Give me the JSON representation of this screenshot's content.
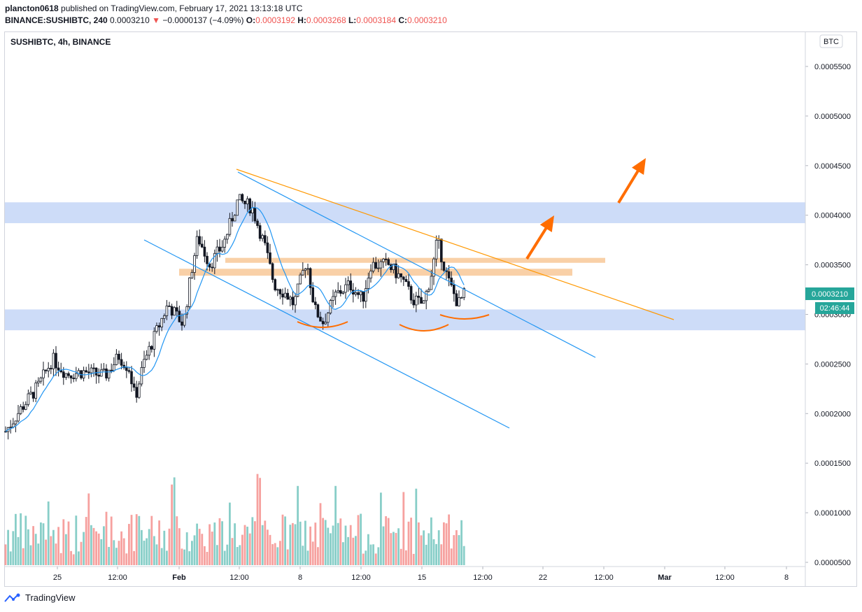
{
  "header": {
    "author": "plancton0618",
    "published": "published on TradingView.com, February 17, 2021 13:13:18 UTC",
    "symbol_line": "BINANCE:SUSHIBTC, 240",
    "last": "0.0003210",
    "change_arrow": "▼",
    "change": "−0.0000137 (−4.09%)",
    "o_label": "O:",
    "o": "0.0003192",
    "h_label": "H:",
    "h": "0.0003268",
    "l_label": "L:",
    "l": "0.0003184",
    "c_label": "C:",
    "c": "0.0003210"
  },
  "legend_title": "SUSHIBTC, 4h, BINANCE",
  "currency_badge": "BTC",
  "price_tag": "0.0003210",
  "countdown_tag": "02:46:44",
  "footer_brand": "TradingView",
  "colors": {
    "up": "#26a69a",
    "down": "#ef5350",
    "candle_body": "#131722",
    "zone_blue": "#a4bff2",
    "zone_orange": "#f7c08a",
    "channel": "#2196f3",
    "trendline": "#ff9800",
    "arrow": "#ff6d00",
    "ma": "#2196f3"
  },
  "chart_data": {
    "type": "candlestick",
    "y_axis": {
      "min": 4.5e-05,
      "max": 0.00058,
      "ticks": [
        "0.0005500",
        "0.0005000",
        "0.0004500",
        "0.0004000",
        "0.0003500",
        "0.0003000",
        "0.0002500",
        "0.0002000",
        "0.0001500",
        "0.0001000",
        "0.0000500"
      ]
    },
    "x_axis": {
      "ticks": [
        "25",
        "12:00",
        "Feb",
        "12:00",
        "8",
        "12:00",
        "15",
        "12:00",
        "22",
        "12:00",
        "Mar",
        "12:00",
        "8"
      ]
    },
    "ohlc_sample": [
      {
        "o": 0.00018,
        "h": 0.000205,
        "l": 0.000176,
        "c": 0.000202
      },
      {
        "o": 0.000202,
        "h": 0.000215,
        "l": 0.000198,
        "c": 0.00021
      },
      {
        "o": 0.00021,
        "h": 0.00023,
        "l": 0.000205,
        "c": 0.000225
      },
      {
        "o": 0.000225,
        "h": 0.000265,
        "l": 0.00022,
        "c": 0.000258
      },
      {
        "o": 0.000258,
        "h": 0.00027,
        "l": 0.000232,
        "c": 0.00024
      },
      {
        "o": 0.00024,
        "h": 0.000262,
        "l": 0.000225,
        "c": 0.000252
      },
      {
        "o": 0.000252,
        "h": 0.000275,
        "l": 0.000205,
        "c": 0.000215
      },
      {
        "o": 0.000215,
        "h": 0.00031,
        "l": 0.00021,
        "c": 0.0003
      },
      {
        "o": 0.0003,
        "h": 0.00041,
        "l": 0.00029,
        "c": 0.000395
      },
      {
        "o": 0.000395,
        "h": 0.000445,
        "l": 0.00036,
        "c": 0.000415
      },
      {
        "o": 0.000415,
        "h": 0.00042,
        "l": 0.00032,
        "c": 0.00033
      },
      {
        "o": 0.00033,
        "h": 0.000365,
        "l": 0.00029,
        "c": 0.0003
      },
      {
        "o": 0.0003,
        "h": 0.000345,
        "l": 0.000295,
        "c": 0.00033
      },
      {
        "o": 0.00033,
        "h": 0.000362,
        "l": 0.000305,
        "c": 0.000345
      },
      {
        "o": 0.000345,
        "h": 0.00035,
        "l": 0.00028,
        "c": 0.000305
      },
      {
        "o": 0.000305,
        "h": 0.000378,
        "l": 0.0003,
        "c": 0.00037
      },
      {
        "o": 0.00037,
        "h": 0.000375,
        "l": 0.00031,
        "c": 0.000321
      }
    ],
    "annotations": {
      "resistance_zone": [
        0.000392,
        0.000413
      ],
      "support_zone": [
        0.000284,
        0.000305
      ],
      "neckline_zone_1": [
        0.000352,
        0.000355
      ],
      "neckline_zone_2": [
        0.00034,
        0.000346
      ],
      "trendline": [
        {
          "x": "Jan 31 12:00",
          "y": 0.000447
        },
        {
          "x": "Feb 27",
          "y": 0.000295
        }
      ],
      "channel_upper": [
        {
          "x": "Jan 31 12:00",
          "y": 0.000444
        },
        {
          "x": "Feb 22",
          "y": 0.000258
        }
      ],
      "channel_lower": [
        {
          "x": "Jan 29",
          "y": 0.000377
        },
        {
          "x": "Feb 19",
          "y": 0.000185
        }
      ]
    }
  }
}
